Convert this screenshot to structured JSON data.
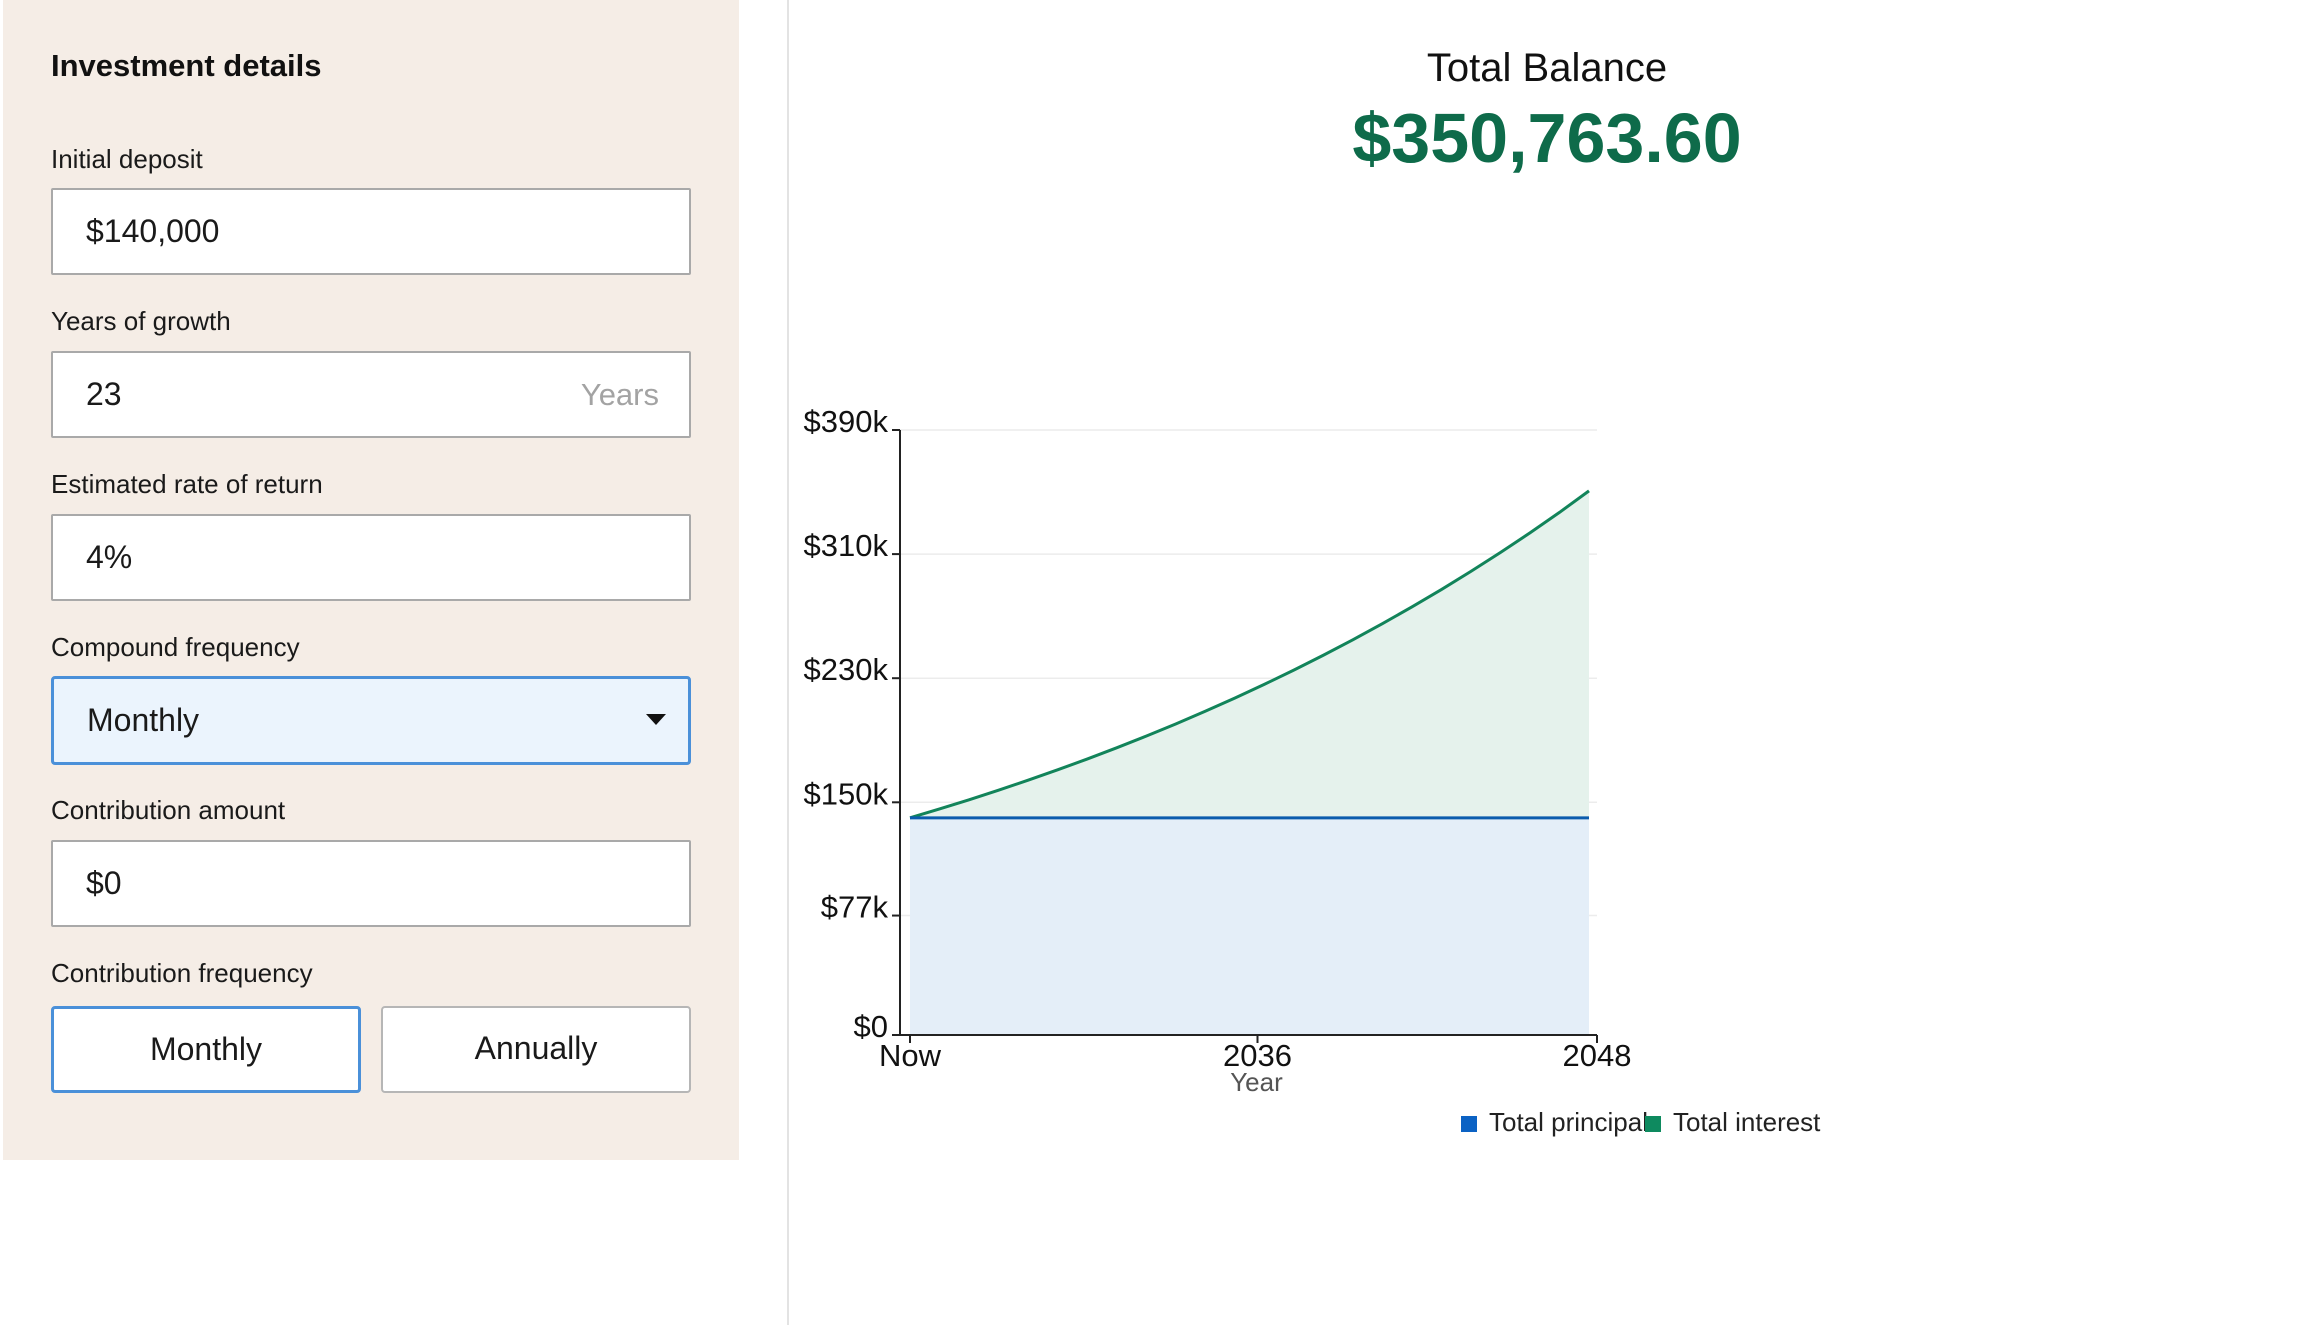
{
  "form": {
    "title": "Investment details",
    "initial_deposit": {
      "label": "Initial deposit",
      "value": "$140,000"
    },
    "years_of_growth": {
      "label": "Years of growth",
      "value": "23",
      "suffix": "Years"
    },
    "rate_of_return": {
      "label": "Estimated rate of return",
      "value": "4%"
    },
    "compound_frequency": {
      "label": "Compound frequency",
      "value": "Monthly"
    },
    "contribution_amount": {
      "label": "Contribution amount",
      "value": "$0"
    },
    "contribution_frequency": {
      "label": "Contribution frequency",
      "options": [
        "Monthly",
        "Annually"
      ],
      "selected": "Monthly"
    }
  },
  "summary": {
    "label": "Total Balance",
    "value": "$350,763.60"
  },
  "colors": {
    "principal": "#0b62c4",
    "interest": "#0e8a5f",
    "balance_text": "#0e6b4a",
    "select_border": "#4a90d9"
  },
  "chart_data": {
    "type": "area",
    "xlabel": "Year",
    "x_tick_labels": [
      "Now",
      "2036",
      "2048"
    ],
    "y_tick_labels": [
      "$0",
      "$77k",
      "$150k",
      "$230k",
      "$310k",
      "$390k"
    ],
    "y_tick_values": [
      0,
      77000,
      150000,
      230000,
      310000,
      390000
    ],
    "ylim": [
      0,
      390000
    ],
    "x_years": [
      2025,
      2048
    ],
    "grid": true,
    "legend_position": "bottom-right",
    "series": [
      {
        "name": "Total principal",
        "x": [
          2025,
          2048
        ],
        "values": [
          140000,
          140000
        ]
      },
      {
        "name": "Total interest",
        "x": [
          2025,
          2026,
          2027,
          2028,
          2029,
          2030,
          2031,
          2032,
          2033,
          2034,
          2035,
          2036,
          2037,
          2038,
          2039,
          2040,
          2041,
          2042,
          2043,
          2044,
          2045,
          2046,
          2047,
          2048
        ],
        "values": [
          140000,
          145701,
          151633,
          157808,
          164234,
          170922,
          177881,
          185125,
          192663,
          200508,
          208673,
          217170,
          226013,
          235216,
          244794,
          254762,
          265136,
          275932,
          287168,
          298862,
          311031,
          323696,
          336877,
          350764
        ]
      }
    ]
  }
}
